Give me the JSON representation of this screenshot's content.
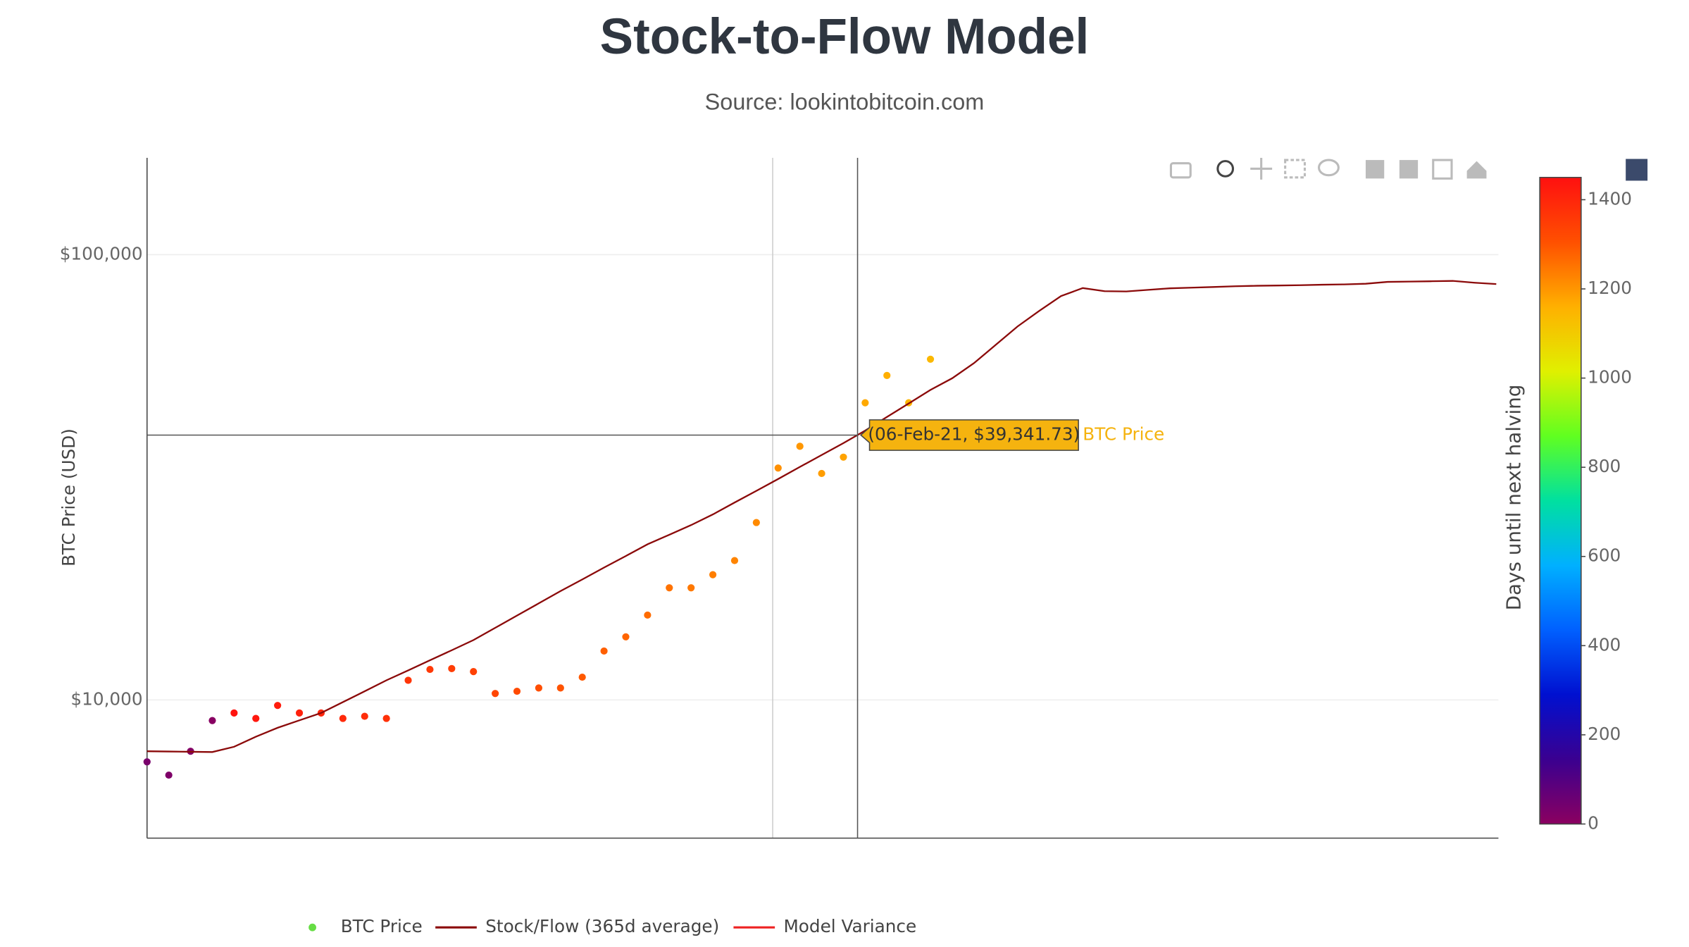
{
  "chart_data": {
    "type": "scatter-line",
    "title": "Stock-to-Flow Model",
    "subtitle": "Source: lookintobitcoin.com",
    "y_label": "BTC Price (USD)",
    "log_y": true,
    "grid": true,
    "categories": [
      null,
      null,
      null,
      null,
      null,
      null,
      null,
      null,
      null,
      null,
      null,
      null,
      null,
      null,
      null,
      null,
      null,
      null,
      null,
      null,
      null,
      null,
      null,
      null,
      null,
      null,
      null,
      null,
      null,
      null,
      null,
      null,
      null,
      null,
      null,
      null,
      null,
      null,
      null,
      null,
      null,
      null,
      null,
      null,
      null,
      null,
      null,
      null,
      null,
      null,
      null,
      null,
      null,
      null,
      null,
      null,
      null,
      null,
      null,
      null,
      null,
      null,
      null
    ],
    "ylim": [
      4894,
      165000
    ],
    "yticks": [
      {
        "value": 10000,
        "label": "$10,000"
      },
      {
        "value": 100000,
        "label": "$100,000"
      }
    ],
    "series": [
      {
        "name": "BTC Price",
        "type": "scatter",
        "color": "#66dd44",
        "values": [
          7260,
          6780,
          7670,
          8990,
          9350,
          9090,
          9720,
          9350,
          9350,
          9090,
          9190,
          9090,
          11070,
          11710,
          11760,
          11580,
          10340,
          10460,
          10640,
          10640,
          11250,
          12880,
          13860,
          15510,
          17860,
          17860,
          19110,
          20560,
          25030,
          33180,
          37130,
          32260,
          35100,
          46500,
          53550,
          46500,
          58240,
          null,
          null,
          null,
          null,
          null,
          null,
          null,
          null,
          null,
          null,
          null,
          null,
          null,
          null,
          null,
          null,
          null,
          null,
          null,
          null,
          null,
          null,
          null,
          null,
          null,
          null
        ],
        "marker_values": [
          33,
          23,
          14,
          5,
          1440,
          1431,
          1421,
          1412,
          1403,
          1394,
          1384,
          1375,
          1366,
          1356,
          1347,
          1338,
          1328,
          1319,
          1310,
          1301,
          1291,
          1282,
          1273,
          1263,
          1254,
          1245,
          1235,
          1226,
          1217,
          1208,
          1198,
          1189,
          1180,
          1170,
          1161,
          1152,
          1142,
          null,
          null,
          null,
          null,
          null,
          null,
          null,
          null,
          null,
          null,
          null,
          null,
          null,
          null,
          null,
          null,
          null,
          null,
          null,
          null,
          null,
          null,
          null,
          null,
          null,
          null
        ]
      },
      {
        "name": "Stock/Flow (365d average)",
        "type": "line",
        "color": "#8b0a0a",
        "values": [
          7670,
          7660,
          7650,
          7640,
          7850,
          8270,
          8660,
          9000,
          9350,
          9890,
          10460,
          11070,
          11650,
          12280,
          12930,
          13630,
          14520,
          15470,
          16480,
          17560,
          18650,
          19830,
          21050,
          22370,
          23500,
          24700,
          26100,
          27760,
          29490,
          31350,
          33370,
          35490,
          37740,
          40270,
          43210,
          46320,
          49700,
          52780,
          57070,
          62740,
          68980,
          74770,
          80750,
          84140,
          82800,
          82690,
          83370,
          84030,
          84320,
          84610,
          84940,
          85140,
          85270,
          85410,
          85610,
          85760,
          86040,
          86870,
          87020,
          87160,
          87320,
          86500,
          85900
        ]
      },
      {
        "name": "Model Variance",
        "type": "line",
        "color": "#ee2222"
      }
    ],
    "colorbar": {
      "title": "Days until next halving",
      "lim": [
        0,
        1450
      ],
      "ticks": [
        0,
        200,
        400,
        600,
        800,
        1000,
        1200,
        1400
      ],
      "colorscale": [
        "#8b0060",
        "#3a0090",
        "#0010d0",
        "#0060ff",
        "#00b0ff",
        "#00e0a0",
        "#60ff20",
        "#e0f000",
        "#ffb000",
        "#ff5000",
        "#ff1010"
      ]
    },
    "hover": {
      "text": "(06-Feb-21, $39,341.73)",
      "value": 39341.73,
      "series": 0
    }
  }
}
